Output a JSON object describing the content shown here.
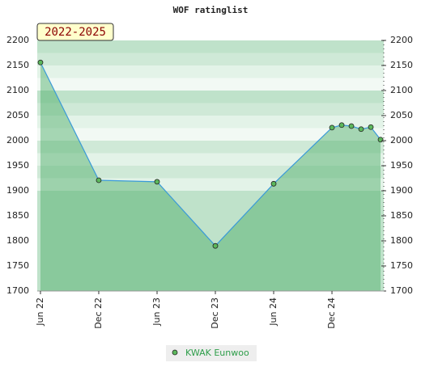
{
  "chart_data": {
    "type": "line",
    "title": "WOF ratinglist",
    "badge": "2022-2025",
    "x": [
      0,
      6,
      12,
      18,
      24,
      30,
      31,
      32,
      33,
      34,
      35
    ],
    "xlim": [
      -0.33,
      35.33
    ],
    "xticks": [
      {
        "value": 0,
        "label": "Jun 22"
      },
      {
        "value": 6,
        "label": "Dec 22"
      },
      {
        "value": 12,
        "label": "Jun 23"
      },
      {
        "value": 18,
        "label": "Dec 23"
      },
      {
        "value": 24,
        "label": "Jun 24"
      },
      {
        "value": 30,
        "label": "Dec 24"
      }
    ],
    "series": [
      {
        "name": "KWAK Eunwoo",
        "color": "#3a9ad9",
        "values": [
          2156,
          1921,
          1918,
          1790,
          1914,
          2026,
          2031,
          2029,
          2023,
          2027,
          2002
        ]
      }
    ],
    "ylim": [
      1700,
      2200
    ],
    "yticks": [
      1700,
      1750,
      1800,
      1850,
      1900,
      1950,
      2000,
      2050,
      2100,
      2150,
      2200
    ]
  }
}
